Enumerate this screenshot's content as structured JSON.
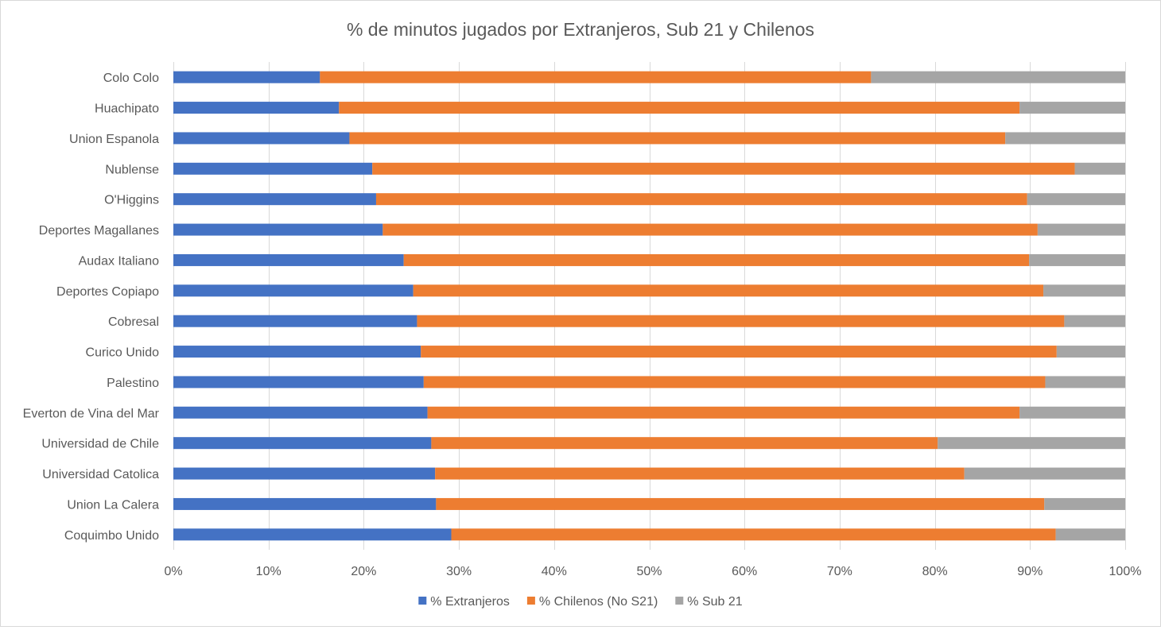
{
  "chart_data": {
    "type": "bar",
    "orientation": "horizontal",
    "stacked": "percent",
    "title": "% de minutos jugados por Extranjeros, Sub 21 y Chilenos",
    "categories": [
      "Colo Colo",
      "Huachipato",
      "Union Espanola",
      "Nublense",
      "O'Higgins",
      "Deportes Magallanes",
      "Audax Italiano",
      "Deportes Copiapo",
      "Cobresal",
      "Curico Unido",
      "Palestino",
      "Everton de Vina del Mar",
      "Universidad de Chile",
      "Universidad Catolica",
      "Union La Calera",
      "Coquimbo Unido"
    ],
    "series": [
      {
        "name": "% Extranjeros",
        "color": "#4472c4",
        "values": [
          15.4,
          17.4,
          18.5,
          20.9,
          21.3,
          22.0,
          24.2,
          25.2,
          25.6,
          26.0,
          26.3,
          26.7,
          27.1,
          27.5,
          27.6,
          29.2
        ]
      },
      {
        "name": "% Chilenos (No S21)",
        "color": "#ed7d31",
        "values": [
          57.9,
          71.5,
          68.9,
          73.8,
          68.4,
          68.8,
          65.7,
          66.2,
          68.0,
          66.8,
          65.3,
          62.2,
          53.2,
          55.6,
          63.9,
          63.5
        ]
      },
      {
        "name": "% Sub 21",
        "color": "#a5a5a5",
        "values": [
          26.7,
          11.1,
          12.6,
          5.3,
          10.3,
          9.2,
          10.1,
          8.6,
          6.4,
          7.2,
          8.4,
          11.1,
          19.7,
          16.9,
          8.5,
          7.3
        ]
      }
    ],
    "xaxis": {
      "ticks": [
        "0%",
        "10%",
        "20%",
        "30%",
        "40%",
        "50%",
        "60%",
        "70%",
        "80%",
        "90%",
        "100%"
      ],
      "range": [
        0,
        100
      ]
    },
    "grid": true,
    "legend_position": "bottom"
  }
}
